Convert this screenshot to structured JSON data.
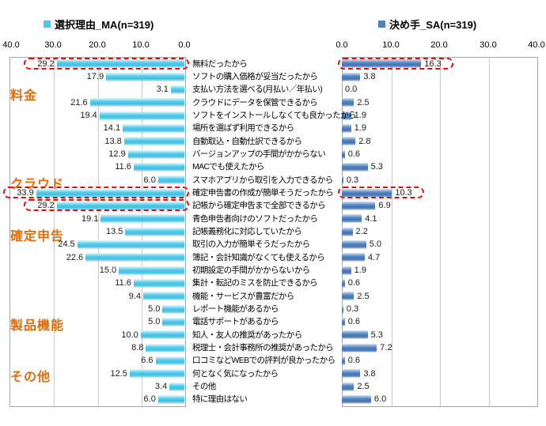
{
  "chart_data": {
    "type": "bar",
    "subtype": "butterfly",
    "title": "",
    "xlim": [
      0,
      40
    ],
    "grid": true,
    "left_axis_ticks": [
      "40.0",
      "30.0",
      "20.0",
      "10.0",
      "0.0"
    ],
    "right_axis_ticks": [
      "0.0",
      "10.0",
      "20.0",
      "30.0",
      "40.0"
    ],
    "categories": [
      "無料だったから",
      "ソフトの購入価格が妥当だったから",
      "支払い方法を選べる(月払い／年払い)",
      "クラウドにデータを保管できるから",
      "ソフトをインストールしなくても良かったから",
      "場所を選ばず利用できるから",
      "自動取込・自動仕訳できるから",
      "バージョンアップの手間がかからない",
      "MACでも使えたから",
      "スマホアプリから取引を入力できるから",
      "確定申告書の作成が簡単そうだったから",
      "記帳から確定申告まで全部できるから",
      "青色申告者向けのソフトだったから",
      "記帳義務化に対応していたから",
      "取引の入力が簡単そうだったから",
      "簿記・会計知識がなくても使えるから",
      "初期設定の手間がかからないから",
      "集計・転記のミスを防止できるから",
      "機能・サービスが豊富だから",
      "レポート機能があるから",
      "電話サポートがあるから",
      "知人・友人の推奨があったから",
      "税理士・会計事務所の推奨があったから",
      "口コミなどWEBでの評判が良かったから",
      "何となく気になったから",
      "その他",
      "特に理由はない"
    ],
    "series": [
      {
        "name": "選択理由_MA(n=319)",
        "side": "left_reversed",
        "color": "#4EC7E8",
        "values": [
          29.2,
          17.9,
          3.1,
          21.6,
          19.4,
          14.1,
          13.8,
          12.9,
          11.6,
          6.0,
          33.9,
          29.2,
          19.1,
          13.5,
          24.5,
          22.6,
          15.0,
          11.6,
          9.4,
          5.0,
          5.0,
          10.0,
          8.8,
          6.6,
          12.5,
          3.4,
          6.0
        ]
      },
      {
        "name": "決め手_SA(n=319)",
        "side": "right",
        "color": "#4F81BD",
        "values": [
          16.3,
          3.8,
          0.0,
          2.5,
          1.9,
          1.9,
          2.8,
          0.6,
          5.3,
          0.3,
          10.3,
          6.9,
          4.1,
          2.2,
          5.0,
          4.7,
          1.9,
          0.6,
          2.5,
          0.3,
          0.6,
          5.3,
          7.2,
          0.6,
          3.8,
          2.5,
          6.0
        ]
      }
    ],
    "groups": [
      {
        "label": "料金"
      },
      {
        "label": "クラウド"
      },
      {
        "label": "確定申告"
      },
      {
        "label": "製品機能"
      },
      {
        "label": "その他"
      }
    ],
    "group_color": "#E36C0A",
    "highlights": {
      "box_color": "#FF0000",
      "left_rows": [
        0,
        10,
        11
      ],
      "right_rows": [
        0,
        10
      ]
    }
  }
}
